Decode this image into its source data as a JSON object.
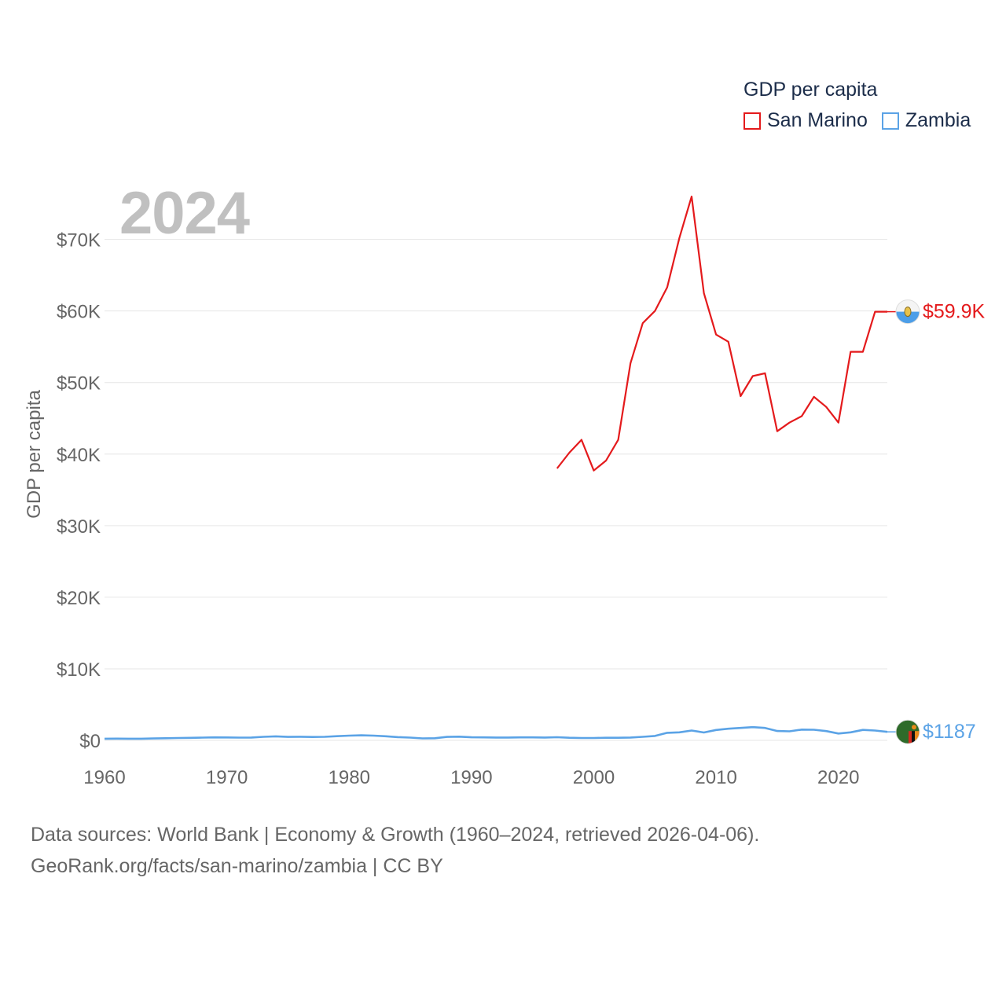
{
  "chart_data": {
    "type": "line",
    "title": "GDP per capita",
    "year_label": "2024",
    "ylabel": "GDP per capita",
    "xlabel": "",
    "xlim": [
      1960,
      2024
    ],
    "ylim": [
      0,
      76000
    ],
    "x_ticks": [
      1960,
      1970,
      1980,
      1990,
      2000,
      2010,
      2020
    ],
    "y_ticks": [
      0,
      10000,
      20000,
      30000,
      40000,
      50000,
      60000,
      70000
    ],
    "y_tick_labels": [
      "$0",
      "$10K",
      "$20K",
      "$30K",
      "$40K",
      "$50K",
      "$60K",
      "$70K"
    ],
    "grid": true,
    "legend_position": "top-right",
    "series": [
      {
        "name": "San Marino",
        "color": "#e41a1c",
        "end_label": "$59.9K",
        "flag_icon": "san-marino-flag-icon",
        "x": [
          1997,
          1998,
          1999,
          2000,
          2001,
          2002,
          2003,
          2004,
          2005,
          2006,
          2007,
          2008,
          2009,
          2010,
          2011,
          2012,
          2013,
          2014,
          2015,
          2016,
          2017,
          2018,
          2019,
          2020,
          2021,
          2022,
          2023,
          2024
        ],
        "values": [
          38000,
          40200,
          42000,
          37700,
          39100,
          42000,
          52700,
          58300,
          60000,
          63300,
          70200,
          76000,
          62500,
          56700,
          55700,
          48100,
          50900,
          51300,
          43200,
          44400,
          45300,
          48000,
          46600,
          44400,
          54300,
          54300,
          59900,
          59900
        ]
      },
      {
        "name": "Zambia",
        "color": "#5ba3e6",
        "end_label": "$1187",
        "flag_icon": "zambia-flag-icon",
        "x": [
          1960,
          1961,
          1962,
          1963,
          1964,
          1965,
          1966,
          1967,
          1968,
          1969,
          1970,
          1971,
          1972,
          1973,
          1974,
          1975,
          1976,
          1977,
          1978,
          1979,
          1980,
          1981,
          1982,
          1983,
          1984,
          1985,
          1986,
          1987,
          1988,
          1989,
          1990,
          1991,
          1992,
          1993,
          1994,
          1995,
          1996,
          1997,
          1998,
          1999,
          2000,
          2001,
          2002,
          2003,
          2004,
          2005,
          2006,
          2007,
          2008,
          2009,
          2010,
          2011,
          2012,
          2013,
          2014,
          2015,
          2016,
          2017,
          2018,
          2019,
          2020,
          2021,
          2022,
          2023,
          2024
        ],
        "values": [
          230,
          240,
          230,
          230,
          260,
          300,
          330,
          350,
          380,
          420,
          410,
          380,
          400,
          490,
          560,
          480,
          500,
          470,
          490,
          580,
          660,
          700,
          660,
          570,
          450,
          380,
          280,
          300,
          480,
          520,
          430,
          420,
          400,
          390,
          420,
          420,
          400,
          440,
          360,
          330,
          330,
          360,
          360,
          400,
          490,
          620,
          1050,
          1120,
          1370,
          1100,
          1450,
          1620,
          1730,
          1840,
          1740,
          1310,
          1260,
          1500,
          1480,
          1300,
          960,
          1120,
          1460,
          1370,
          1187
        ]
      }
    ]
  },
  "footer": {
    "line1": "Data sources: World Bank | Economy & Growth (1960–2024, retrieved 2026-04-06).",
    "line2": "GeoRank.org/facts/san-marino/zambia | CC BY"
  }
}
